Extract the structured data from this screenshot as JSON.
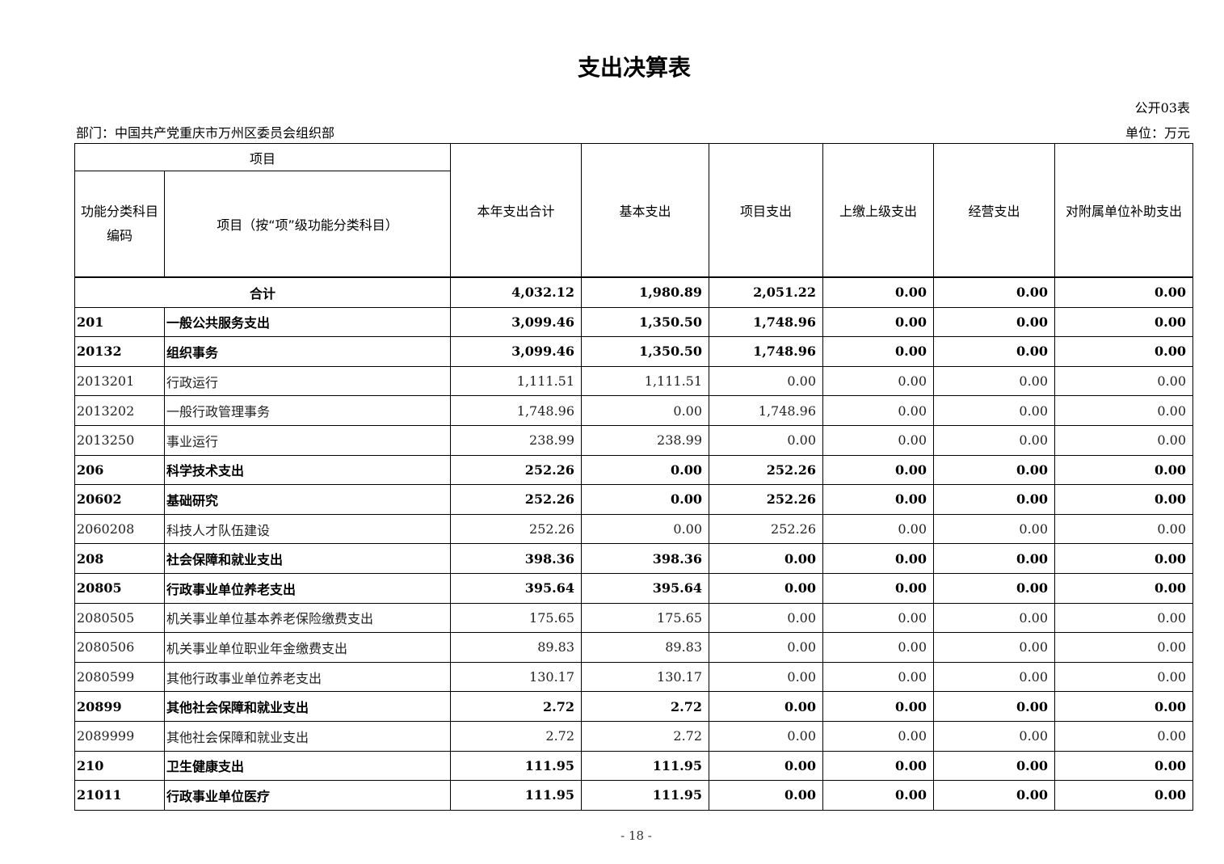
{
  "title": "支出决算表",
  "table_code": "公开03表",
  "department": "部门：中国共产党重庆市万州区委员会组织部",
  "unit": "单位：万元",
  "headers": {
    "item_group": "项目",
    "code": "功能分类科目编码",
    "name": "项目（按“项”级功能分类科目）",
    "total": "本年支出合计",
    "basic": "基本支出",
    "project": "项目支出",
    "upper": "上缴上级支出",
    "business": "经营支出",
    "subsidy": "对附属单位补助支出"
  },
  "rows": [
    {
      "code": "",
      "name": "合计",
      "total": "4,032.12",
      "basic": "1,980.89",
      "project": "2,051.22",
      "upper": "0.00",
      "business": "0.00",
      "subsidy": "0.00",
      "bold": true
    },
    {
      "code": "201",
      "name": "一般公共服务支出",
      "total": "3,099.46",
      "basic": "1,350.50",
      "project": "1,748.96",
      "upper": "0.00",
      "business": "0.00",
      "subsidy": "0.00",
      "bold": true
    },
    {
      "code": "20132",
      "name": "组织事务",
      "total": "3,099.46",
      "basic": "1,350.50",
      "project": "1,748.96",
      "upper": "0.00",
      "business": "0.00",
      "subsidy": "0.00",
      "bold": true
    },
    {
      "code": "2013201",
      "name": "行政运行",
      "total": "1,111.51",
      "basic": "1,111.51",
      "project": "0.00",
      "upper": "0.00",
      "business": "0.00",
      "subsidy": "0.00",
      "bold": false
    },
    {
      "code": "2013202",
      "name": "一般行政管理事务",
      "total": "1,748.96",
      "basic": "0.00",
      "project": "1,748.96",
      "upper": "0.00",
      "business": "0.00",
      "subsidy": "0.00",
      "bold": false
    },
    {
      "code": "2013250",
      "name": "事业运行",
      "total": "238.99",
      "basic": "238.99",
      "project": "0.00",
      "upper": "0.00",
      "business": "0.00",
      "subsidy": "0.00",
      "bold": false
    },
    {
      "code": "206",
      "name": "科学技术支出",
      "total": "252.26",
      "basic": "0.00",
      "project": "252.26",
      "upper": "0.00",
      "business": "0.00",
      "subsidy": "0.00",
      "bold": true
    },
    {
      "code": "20602",
      "name": "基础研究",
      "total": "252.26",
      "basic": "0.00",
      "project": "252.26",
      "upper": "0.00",
      "business": "0.00",
      "subsidy": "0.00",
      "bold": true
    },
    {
      "code": "2060208",
      "name": "科技人才队伍建设",
      "total": "252.26",
      "basic": "0.00",
      "project": "252.26",
      "upper": "0.00",
      "business": "0.00",
      "subsidy": "0.00",
      "bold": false
    },
    {
      "code": "208",
      "name": "社会保障和就业支出",
      "total": "398.36",
      "basic": "398.36",
      "project": "0.00",
      "upper": "0.00",
      "business": "0.00",
      "subsidy": "0.00",
      "bold": true
    },
    {
      "code": "20805",
      "name": "行政事业单位养老支出",
      "total": "395.64",
      "basic": "395.64",
      "project": "0.00",
      "upper": "0.00",
      "business": "0.00",
      "subsidy": "0.00",
      "bold": true
    },
    {
      "code": "2080505",
      "name": "机关事业单位基本养老保险缴费支出",
      "total": "175.65",
      "basic": "175.65",
      "project": "0.00",
      "upper": "0.00",
      "business": "0.00",
      "subsidy": "0.00",
      "bold": false
    },
    {
      "code": "2080506",
      "name": "机关事业单位职业年金缴费支出",
      "total": "89.83",
      "basic": "89.83",
      "project": "0.00",
      "upper": "0.00",
      "business": "0.00",
      "subsidy": "0.00",
      "bold": false
    },
    {
      "code": "2080599",
      "name": "其他行政事业单位养老支出",
      "total": "130.17",
      "basic": "130.17",
      "project": "0.00",
      "upper": "0.00",
      "business": "0.00",
      "subsidy": "0.00",
      "bold": false
    },
    {
      "code": "20899",
      "name": "其他社会保障和就业支出",
      "total": "2.72",
      "basic": "2.72",
      "project": "0.00",
      "upper": "0.00",
      "business": "0.00",
      "subsidy": "0.00",
      "bold": true
    },
    {
      "code": "2089999",
      "name": "其他社会保障和就业支出",
      "total": "2.72",
      "basic": "2.72",
      "project": "0.00",
      "upper": "0.00",
      "business": "0.00",
      "subsidy": "0.00",
      "bold": false
    },
    {
      "code": "210",
      "name": "卫生健康支出",
      "total": "111.95",
      "basic": "111.95",
      "project": "0.00",
      "upper": "0.00",
      "business": "0.00",
      "subsidy": "0.00",
      "bold": true
    },
    {
      "code": "21011",
      "name": "行政事业单位医疗",
      "total": "111.95",
      "basic": "111.95",
      "project": "0.00",
      "upper": "0.00",
      "business": "0.00",
      "subsidy": "0.00",
      "bold": true
    }
  ],
  "page_number": "- 18 -"
}
